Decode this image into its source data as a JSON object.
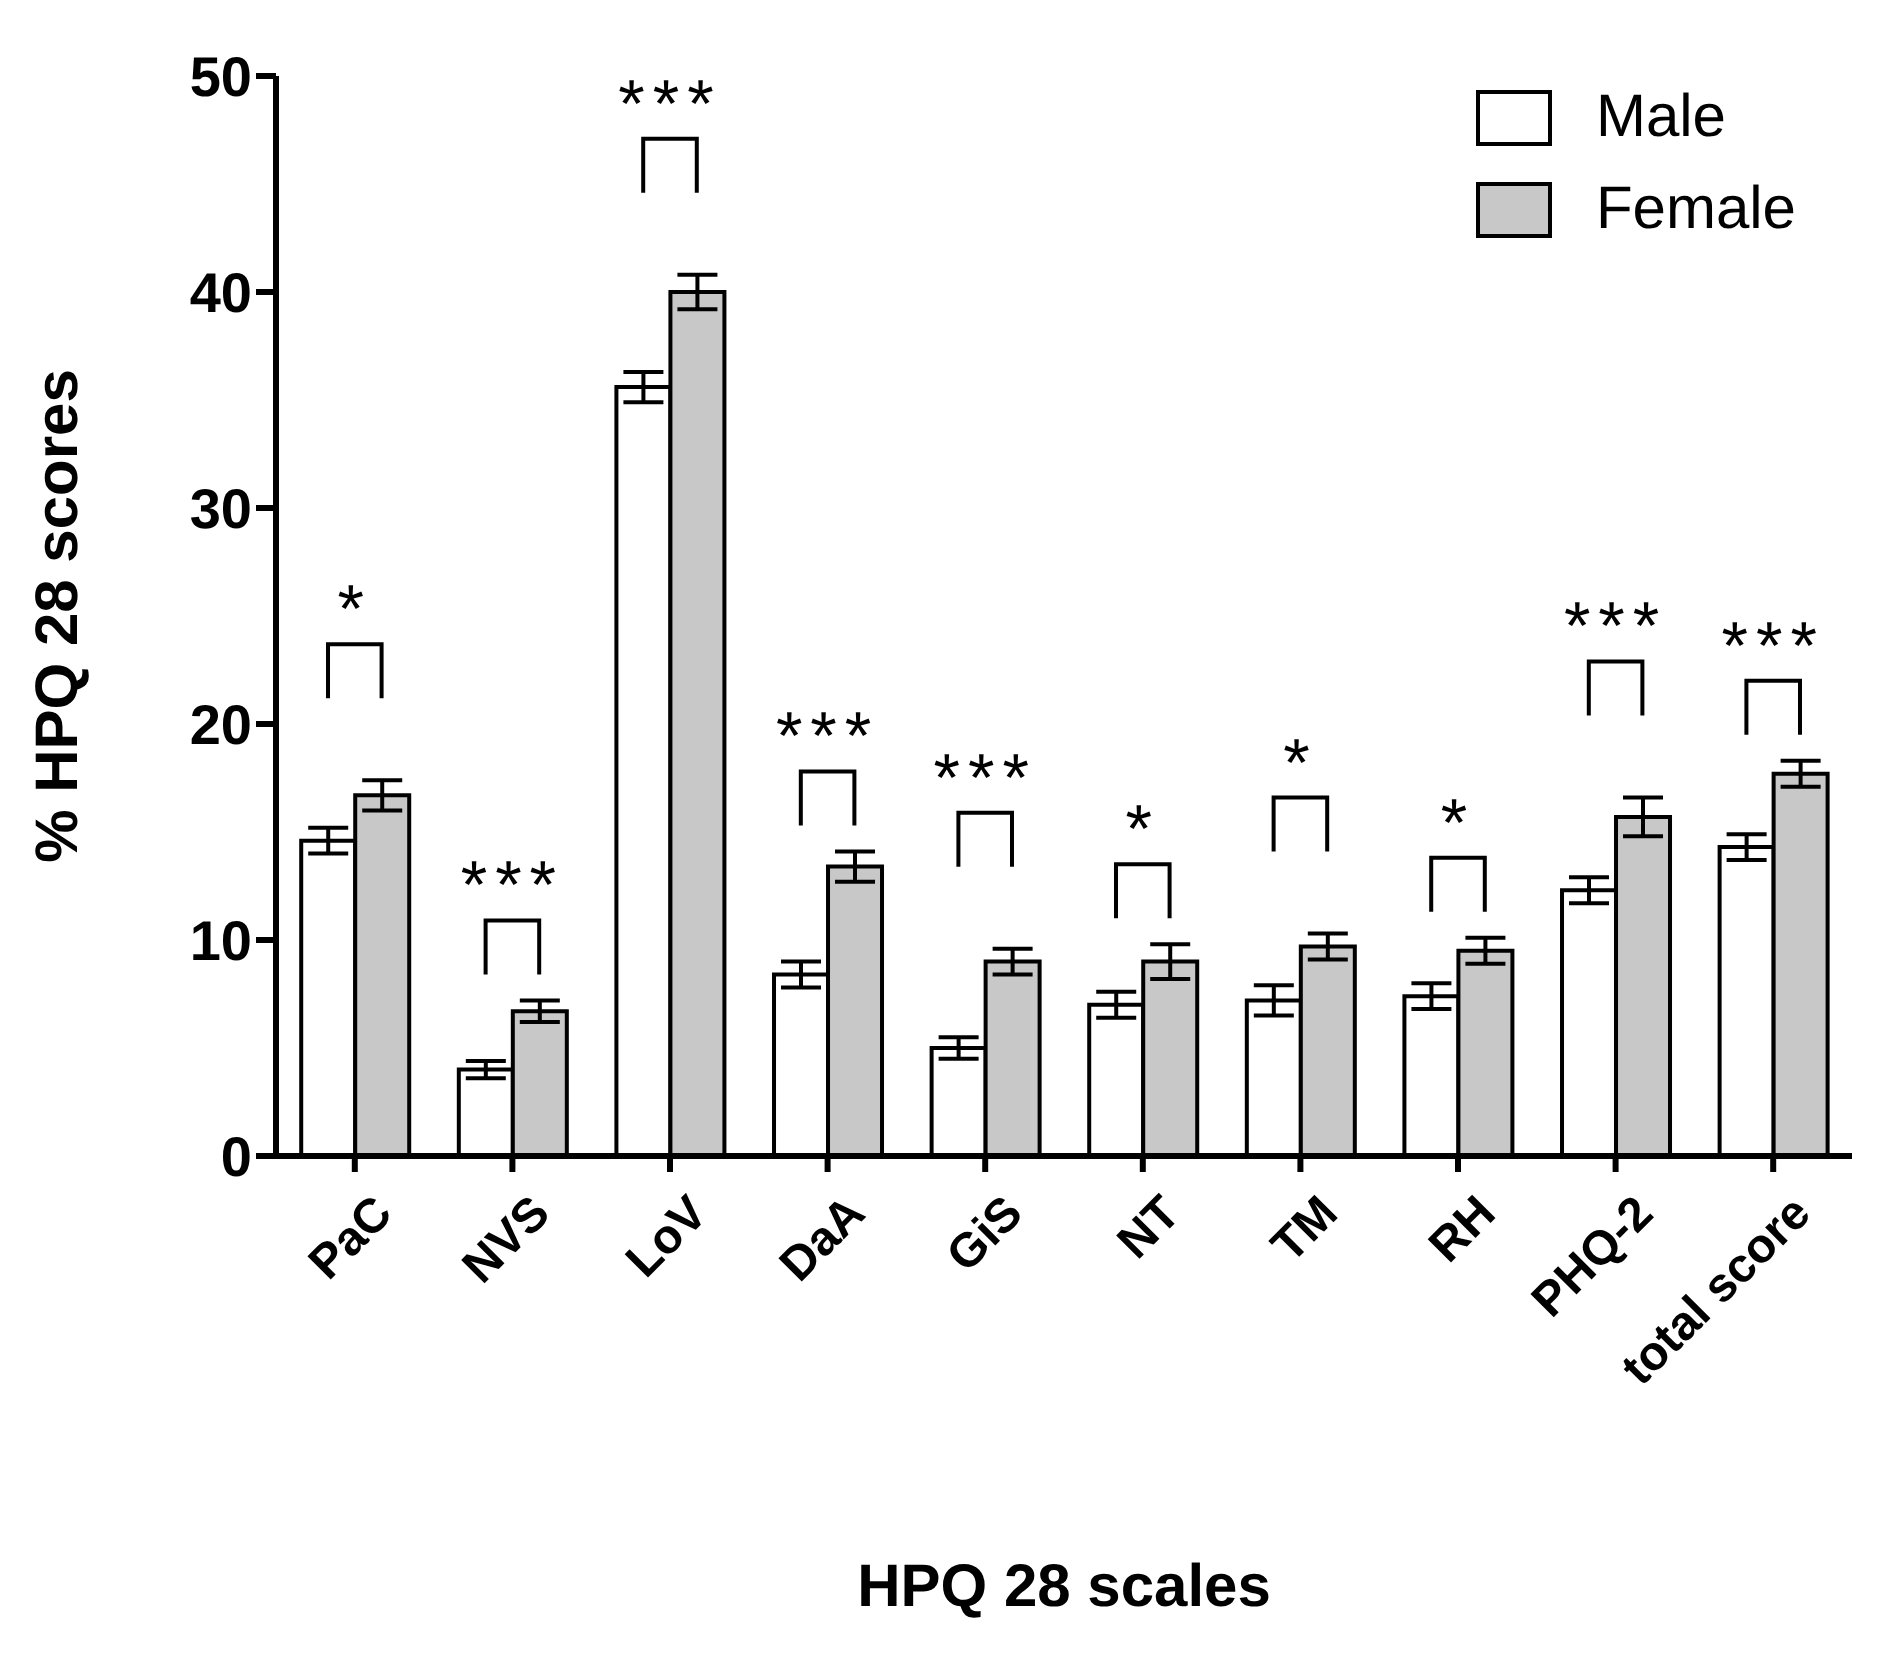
{
  "chart_data": {
    "type": "bar",
    "xlabel": "HPQ 28 scales",
    "ylabel": "% HPQ 28 scores",
    "categories": [
      "PaC",
      "NVS",
      "LoV",
      "DaA",
      "GiS",
      "NT",
      "TM",
      "RH",
      "PHQ-2",
      "total score"
    ],
    "series": [
      {
        "name": "Male",
        "color": "#ffffff",
        "values": [
          14.6,
          4.0,
          35.6,
          8.4,
          5.0,
          7.0,
          7.2,
          7.4,
          12.3,
          14.3
        ],
        "errors": [
          0.6,
          0.4,
          0.7,
          0.6,
          0.5,
          0.6,
          0.7,
          0.6,
          0.6,
          0.6
        ]
      },
      {
        "name": "Female",
        "color": "#c8c8c8",
        "values": [
          16.7,
          6.7,
          40.0,
          13.4,
          9.0,
          9.0,
          9.7,
          9.5,
          15.7,
          17.7
        ],
        "errors": [
          0.7,
          0.5,
          0.8,
          0.7,
          0.6,
          0.8,
          0.6,
          0.6,
          0.9,
          0.6
        ]
      }
    ],
    "ylim": [
      0,
      50
    ],
    "yticks": [
      0,
      10,
      20,
      30,
      40,
      50
    ],
    "grid": false,
    "legend": "top right",
    "annotations": [
      "*",
      "***",
      "***",
      "***",
      "***",
      "*",
      "*",
      "*",
      "***",
      "***"
    ]
  }
}
